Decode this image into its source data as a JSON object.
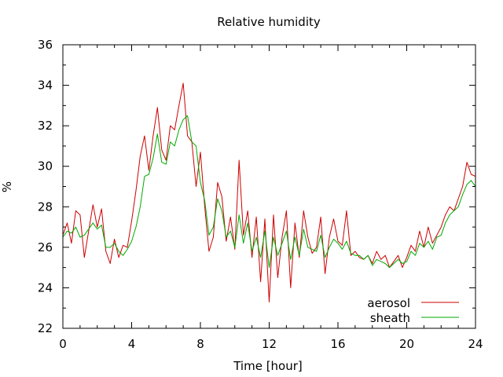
{
  "chart_data": {
    "type": "line",
    "title": "Relative humidity",
    "xlabel": "Time [hour]",
    "ylabel": "%",
    "xlim": [
      0,
      24
    ],
    "ylim": [
      22,
      36
    ],
    "xticks": [
      0,
      4,
      8,
      12,
      16,
      20,
      24
    ],
    "yticks": [
      22,
      24,
      26,
      28,
      30,
      32,
      34,
      36
    ],
    "grid": false,
    "legend_position": "bottom-right",
    "series": [
      {
        "name": "aerosol",
        "color": "#cc0000",
        "x": [
          0,
          0.25,
          0.5,
          0.75,
          1,
          1.25,
          1.5,
          1.75,
          2,
          2.25,
          2.5,
          2.75,
          3,
          3.25,
          3.5,
          3.75,
          4,
          4.25,
          4.5,
          4.75,
          5,
          5.25,
          5.5,
          5.75,
          6,
          6.25,
          6.5,
          6.75,
          7,
          7.25,
          7.5,
          7.75,
          8,
          8.25,
          8.5,
          8.75,
          9,
          9.25,
          9.5,
          9.75,
          10,
          10.25,
          10.5,
          10.75,
          11,
          11.25,
          11.5,
          11.75,
          12,
          12.25,
          12.5,
          12.75,
          13,
          13.25,
          13.5,
          13.75,
          14,
          14.25,
          14.5,
          14.75,
          15,
          15.25,
          15.5,
          15.75,
          16,
          16.25,
          16.5,
          16.75,
          17,
          17.25,
          17.5,
          17.75,
          18,
          18.25,
          18.5,
          18.75,
          19,
          19.25,
          19.5,
          19.75,
          20,
          20.25,
          20.5,
          20.75,
          21,
          21.25,
          21.5,
          21.75,
          22,
          22.25,
          22.5,
          22.75,
          23,
          23.25,
          23.5,
          23.75,
          24
        ],
        "y": [
          26.6,
          27.2,
          26.2,
          27.8,
          27.6,
          25.5,
          26.8,
          28.1,
          27.0,
          27.9,
          25.8,
          25.2,
          26.4,
          25.5,
          26.1,
          26.0,
          27.3,
          28.8,
          30.5,
          31.5,
          29.8,
          31.5,
          32.9,
          30.8,
          30.3,
          32.0,
          31.8,
          33.0,
          34.1,
          31.5,
          31.2,
          29.0,
          30.7,
          28.0,
          25.8,
          26.5,
          29.2,
          28.5,
          26.3,
          27.5,
          25.9,
          30.3,
          26.6,
          27.8,
          25.5,
          27.5,
          24.3,
          27.4,
          23.3,
          27.6,
          24.5,
          26.5,
          27.8,
          24.0,
          27.2,
          25.5,
          27.8,
          26.5,
          25.7,
          26.0,
          27.5,
          24.7,
          26.5,
          27.4,
          26.3,
          26.1,
          27.8,
          25.6,
          25.8,
          25.5,
          25.4,
          25.6,
          25.2,
          25.8,
          25.4,
          25.6,
          25.0,
          25.3,
          25.6,
          25.0,
          25.5,
          26.1,
          25.8,
          26.8,
          26.0,
          27.0,
          26.2,
          26.6,
          27.0,
          27.6,
          28.0,
          27.8,
          28.4,
          29.0,
          30.2,
          29.6,
          29.5
        ]
      },
      {
        "name": "sheath",
        "color": "#00aa00",
        "x": [
          0,
          0.25,
          0.5,
          0.75,
          1,
          1.25,
          1.5,
          1.75,
          2,
          2.25,
          2.5,
          2.75,
          3,
          3.25,
          3.5,
          3.75,
          4,
          4.25,
          4.5,
          4.75,
          5,
          5.25,
          5.5,
          5.75,
          6,
          6.25,
          6.5,
          6.75,
          7,
          7.25,
          7.5,
          7.75,
          8,
          8.25,
          8.5,
          8.75,
          9,
          9.25,
          9.5,
          9.75,
          10,
          10.25,
          10.5,
          10.75,
          11,
          11.25,
          11.5,
          11.75,
          12,
          12.25,
          12.5,
          12.75,
          13,
          13.25,
          13.5,
          13.75,
          14,
          14.25,
          14.5,
          14.75,
          15,
          15.25,
          15.5,
          15.75,
          16,
          16.25,
          16.5,
          16.75,
          17,
          17.25,
          17.5,
          17.75,
          18,
          18.25,
          18.5,
          18.75,
          19,
          19.25,
          19.5,
          19.75,
          20,
          20.25,
          20.5,
          20.75,
          21,
          21.25,
          21.5,
          21.75,
          22,
          22.25,
          22.5,
          22.75,
          23,
          23.25,
          23.5,
          23.75,
          24
        ],
        "y": [
          26.5,
          26.8,
          26.7,
          27.0,
          26.5,
          26.6,
          26.9,
          27.2,
          26.9,
          27.1,
          26.0,
          26.0,
          26.2,
          25.8,
          25.6,
          25.9,
          26.3,
          27.0,
          28.0,
          29.5,
          29.6,
          30.4,
          31.6,
          30.2,
          30.1,
          31.2,
          31.0,
          31.8,
          32.3,
          32.5,
          31.2,
          31.0,
          29.2,
          28.3,
          26.6,
          27.0,
          28.4,
          27.8,
          26.5,
          26.8,
          26.0,
          27.6,
          26.2,
          27.2,
          25.8,
          26.5,
          25.5,
          26.8,
          25.0,
          26.5,
          25.6,
          26.2,
          26.8,
          25.4,
          26.5,
          25.6,
          26.9,
          26.0,
          25.9,
          25.8,
          26.6,
          25.5,
          26.0,
          26.4,
          26.2,
          25.9,
          26.3,
          25.7,
          25.6,
          25.6,
          25.4,
          25.6,
          25.1,
          25.4,
          25.3,
          25.2,
          25.0,
          25.2,
          25.4,
          25.2,
          25.3,
          25.8,
          25.6,
          26.2,
          26.0,
          26.3,
          25.9,
          26.5,
          26.6,
          27.2,
          27.6,
          27.8,
          28.0,
          28.6,
          29.1,
          29.3,
          29.0
        ]
      }
    ]
  }
}
